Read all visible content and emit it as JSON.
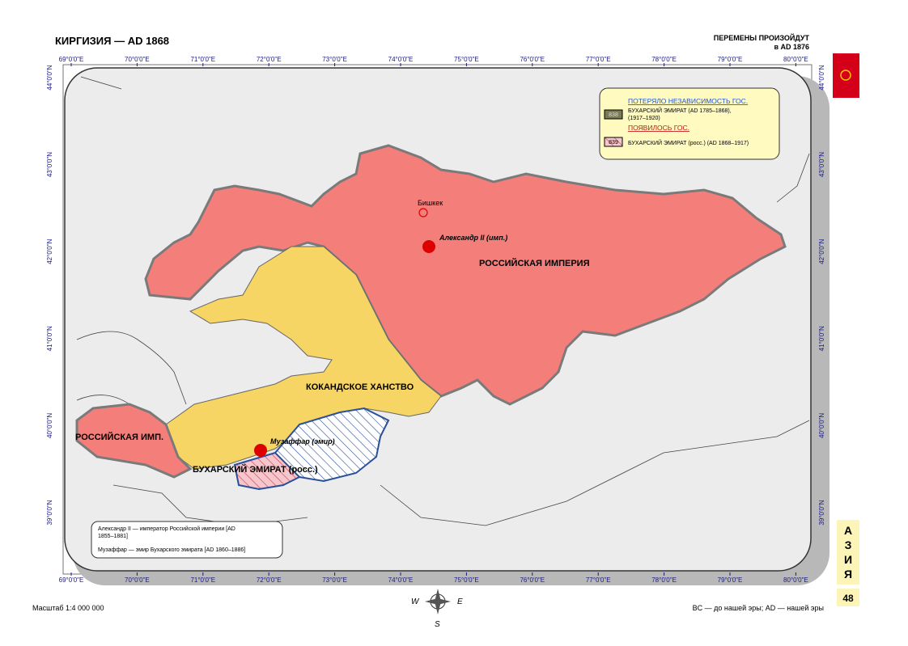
{
  "header": {
    "title": "КИРГИЗИЯ — AD 1868",
    "changes_line1": "ПЕРЕМЕНЫ ПРОИЗОЙДУТ",
    "changes_line2": "в AD 1876"
  },
  "axes": {
    "lon_top": [
      "69°0'0\"E",
      "70°0'0\"E",
      "71°0'0\"E",
      "72°0'0\"E",
      "73°0'0\"E",
      "74°0'0\"E",
      "75°0'0\"E",
      "76°0'0\"E",
      "77°0'0\"E",
      "78°0'0\"E",
      "79°0'0\"E",
      "80°0'0\"E"
    ],
    "lon_bottom": [
      "69°0'0\"E",
      "70°0'0\"E",
      "71°0'0\"E",
      "72°0'0\"E",
      "73°0'0\"E",
      "74°0'0\"E",
      "75°0'0\"E",
      "76°0'0\"E",
      "77°0'0\"E",
      "78°0'0\"E",
      "79°0'0\"E",
      "80°0'0\"E"
    ],
    "lat_left": [
      "44°0'0\"N",
      "43°0'0\"N",
      "42°0'0\"N",
      "41°0'0\"N",
      "40°0'0\"N",
      "39°0'0\"N"
    ],
    "lat_right": [
      "44°0'0\"N",
      "43°0'0\"N",
      "42°0'0\"N",
      "41°0'0\"N",
      "40°0'0\"N",
      "39°0'0\"N"
    ]
  },
  "legend": {
    "lost_heading": "ПОТЕРЯЛО НЕЗАВИСИМОСТЬ ГОС.",
    "lost_code": "838",
    "lost_text_1": "БУХАРСКИЙ ЭМИРАТ (AD 1785–1868),",
    "lost_text_2": "(1917–1920)",
    "new_heading": "ПОЯВИЛОСЬ ГОС.",
    "new_code": "839",
    "new_text": "БУХАРСКИЙ ЭМИРАТ (росс.) (AD 1868–1917)"
  },
  "map_labels": {
    "city": "Бишкек",
    "ruler_1": "Александр II (имп.)",
    "russia": "РОССИЙСКАЯ ИМПЕРИЯ",
    "kokand": "КОКАНДСКОЕ ХАНСТВО",
    "russia_west": "РОССИЙСКАЯ ИМП.",
    "ruler_2": "Музаффар (эмир)",
    "bukhara": "БУХАРСКИЙ ЭМИРАТ (росс.)"
  },
  "notes": {
    "note_1a": "Александр II — император Российской империи  [AD",
    "note_1b": "1855–1881]",
    "note_2": "Музаффар — эмир Бухарского эмирата [AD 1860–1886]"
  },
  "compass": [
    "W",
    "E",
    "S"
  ],
  "footer": {
    "scale": "Масштаб 1:4 000 000",
    "era": "BC — до нашей эры; AD — нашей эры"
  },
  "side": {
    "letters": [
      "А",
      "З",
      "И",
      "Я"
    ],
    "page": "48"
  }
}
